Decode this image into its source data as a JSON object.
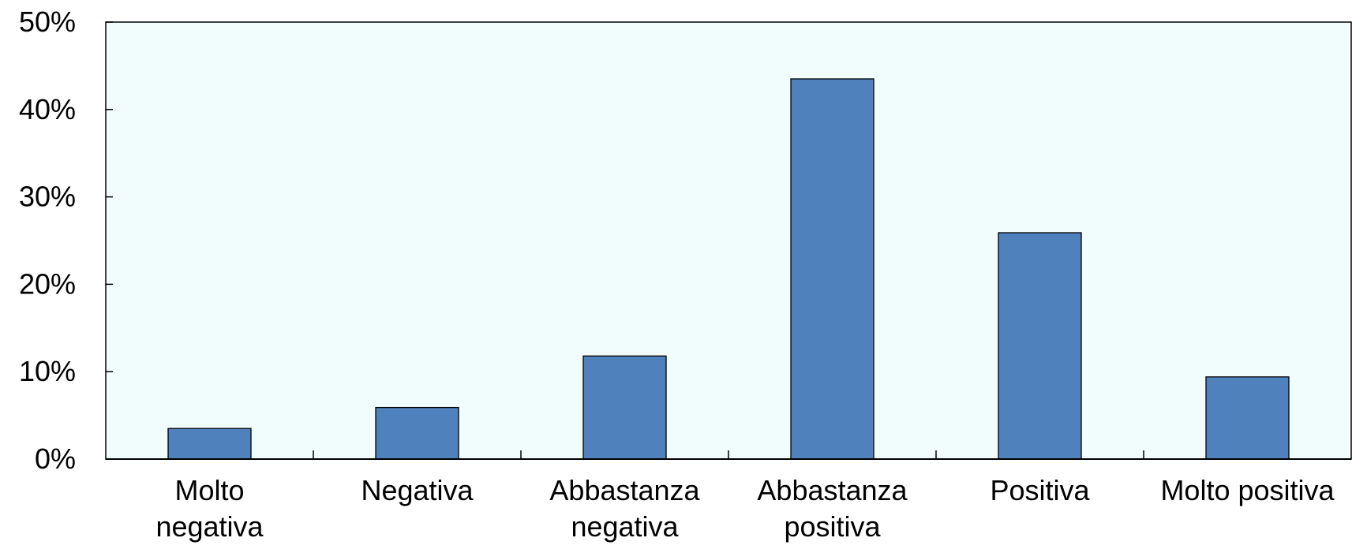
{
  "chart_data": {
    "type": "bar",
    "categories": [
      [
        "Molto",
        "negativa"
      ],
      [
        "Negativa"
      ],
      [
        "Abbastanza",
        "negativa"
      ],
      [
        "Abbastanza",
        "positiva"
      ],
      [
        "Positiva"
      ],
      [
        "Molto positiva"
      ]
    ],
    "values": [
      3.5,
      5.9,
      11.8,
      43.5,
      25.9,
      9.4
    ],
    "ylim": [
      0,
      50
    ],
    "yticks": [
      0,
      10,
      20,
      30,
      40,
      50
    ],
    "ytick_labels": [
      "0%",
      "10%",
      "20%",
      "30%",
      "40%",
      "50%"
    ],
    "title": "",
    "xlabel": "",
    "ylabel": "",
    "grid": false,
    "legend": "none",
    "colors": {
      "bar": "#4f81bd",
      "plot_background": "#f1fcfc",
      "axis": "#000000"
    }
  }
}
